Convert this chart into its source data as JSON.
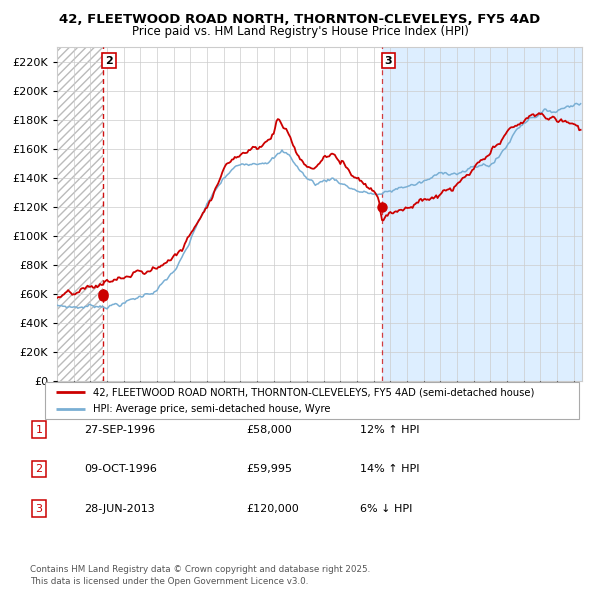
{
  "title1": "42, FLEETWOOD ROAD NORTH, THORNTON-CLEVELEYS, FY5 4AD",
  "title2": "Price paid vs. HM Land Registry's House Price Index (HPI)",
  "legend1": "42, FLEETWOOD ROAD NORTH, THORNTON-CLEVELEYS, FY5 4AD (semi-detached house)",
  "legend2": "HPI: Average price, semi-detached house, Wyre",
  "transactions": [
    {
      "num": 1,
      "date": "27-SEP-1996",
      "x": 1996.74,
      "price": 58000,
      "label": "1"
    },
    {
      "num": 2,
      "date": "09-OCT-1996",
      "x": 1996.77,
      "price": 59995,
      "label": "2"
    },
    {
      "num": 3,
      "date": "28-JUN-2013",
      "x": 2013.49,
      "price": 120000,
      "label": "3"
    }
  ],
  "table_rows": [
    {
      "num": 1,
      "date": "27-SEP-1996",
      "price": "£58,000",
      "change": "12% ↑ HPI"
    },
    {
      "num": 2,
      "date": "09-OCT-1996",
      "price": "£59,995",
      "change": "14% ↑ HPI"
    },
    {
      "num": 3,
      "date": "28-JUN-2013",
      "price": "£120,000",
      "change": "6% ↓ HPI"
    }
  ],
  "footer": "Contains HM Land Registry data © Crown copyright and database right 2025.\nThis data is licensed under the Open Government Licence v3.0.",
  "ylim": [
    0,
    230000
  ],
  "yticks": [
    0,
    20000,
    40000,
    60000,
    80000,
    100000,
    120000,
    140000,
    160000,
    180000,
    200000,
    220000
  ],
  "xmin": 1994.0,
  "xmax": 2025.5,
  "first_sale_x": 1996.74,
  "last_sale_x": 2013.49,
  "red_color": "#cc0000",
  "blue_color": "#7aafd4",
  "shade_color": "#ddeeff",
  "hatch_color": "#bbbbbb",
  "grid_color": "#cccccc",
  "bg_color": "#ffffff"
}
